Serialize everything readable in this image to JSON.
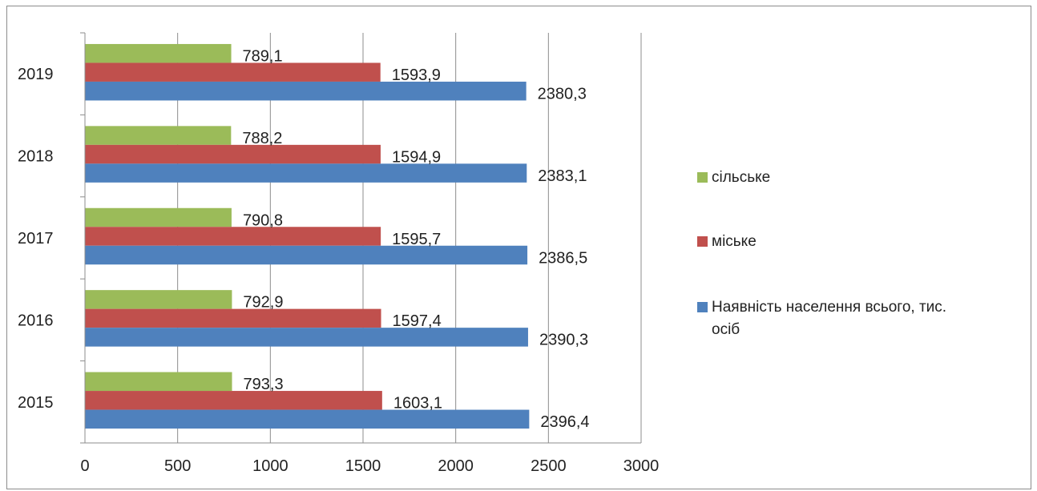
{
  "chart_data": {
    "type": "bar",
    "orientation": "horizontal",
    "categories": [
      "2015",
      "2016",
      "2017",
      "2018",
      "2019"
    ],
    "series": [
      {
        "name": "Наявність населення всього, тис. осіб",
        "color": "#4F81BD",
        "values": [
          2396.4,
          2390.3,
          2386.5,
          2383.1,
          2380.3
        ],
        "labels": [
          "2396,4",
          "2390,3",
          "2386,5",
          "2383,1",
          "2380,3"
        ]
      },
      {
        "name": "міське",
        "color": "#C0504D",
        "values": [
          1603.1,
          1597.4,
          1595.7,
          1594.9,
          1593.9
        ],
        "labels": [
          "1603,1",
          "1597,4",
          "1595,7",
          "1594,9",
          "1593,9"
        ]
      },
      {
        "name": "сільське",
        "color": "#9BBB59",
        "values": [
          793.3,
          792.9,
          790.8,
          788.2,
          789.1
        ],
        "labels": [
          "793,3",
          "792,9",
          "790,8",
          "788,2",
          "789,1"
        ]
      }
    ],
    "xlim": [
      0,
      3000
    ],
    "xticks": [
      "0",
      "500",
      "1000",
      "1500",
      "2000",
      "2500",
      "3000"
    ],
    "grid": "vertical",
    "legend_position": "right",
    "legend_order": [
      "сільське",
      "міське",
      "Наявність населення всього, тис. осіб"
    ],
    "legend_lines": [
      [
        "сільське"
      ],
      [
        "міське"
      ],
      [
        "Наявність населення всього, тис.",
        "осіб"
      ]
    ]
  }
}
